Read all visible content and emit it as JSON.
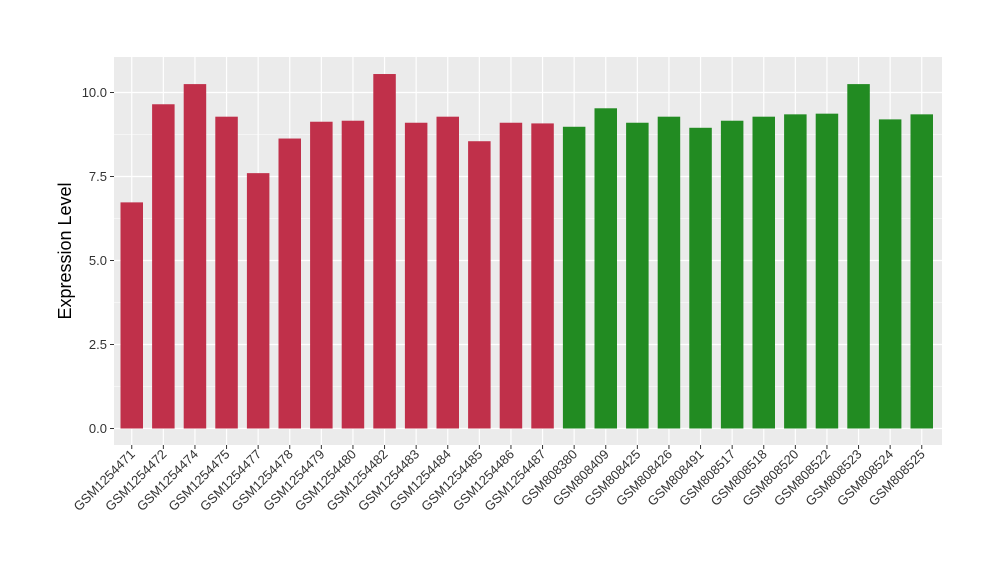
{
  "chart_data": {
    "type": "bar",
    "title": "",
    "xlabel": "",
    "ylabel": "Expression Level",
    "ylim": [
      -0.4,
      11.0
    ],
    "yticks": [
      0.0,
      2.5,
      5.0,
      7.5,
      10.0
    ],
    "ytick_labels": [
      "0.0",
      "2.5",
      "5.0",
      "7.5",
      "10.0"
    ],
    "grid": true,
    "legend": "none",
    "panel_background": "#EBEBEB",
    "grid_color": "#FFFFFF",
    "categories": [
      "GSM1254471",
      "GSM1254472",
      "GSM1254474",
      "GSM1254475",
      "GSM1254477",
      "GSM1254478",
      "GSM1254479",
      "GSM1254480",
      "GSM1254482",
      "GSM1254483",
      "GSM1254484",
      "GSM1254485",
      "GSM1254486",
      "GSM1254487",
      "GSM808380",
      "GSM808409",
      "GSM808425",
      "GSM808426",
      "GSM808491",
      "GSM808517",
      "GSM808518",
      "GSM808520",
      "GSM808522",
      "GSM808523",
      "GSM808524",
      "GSM808525"
    ],
    "values": [
      6.73,
      9.65,
      10.25,
      9.28,
      7.6,
      8.63,
      9.13,
      9.16,
      10.55,
      9.1,
      9.28,
      8.55,
      9.1,
      9.08,
      8.98,
      9.53,
      9.1,
      9.28,
      8.95,
      9.16,
      9.28,
      9.35,
      9.37,
      10.25,
      9.2,
      9.35
    ],
    "groups": [
      "red",
      "red",
      "red",
      "red",
      "red",
      "red",
      "red",
      "red",
      "red",
      "red",
      "red",
      "red",
      "red",
      "red",
      "green",
      "green",
      "green",
      "green",
      "green",
      "green",
      "green",
      "green",
      "green",
      "green",
      "green",
      "green"
    ],
    "group_colors": {
      "red": "#C0304A",
      "green": "#228B22"
    }
  }
}
